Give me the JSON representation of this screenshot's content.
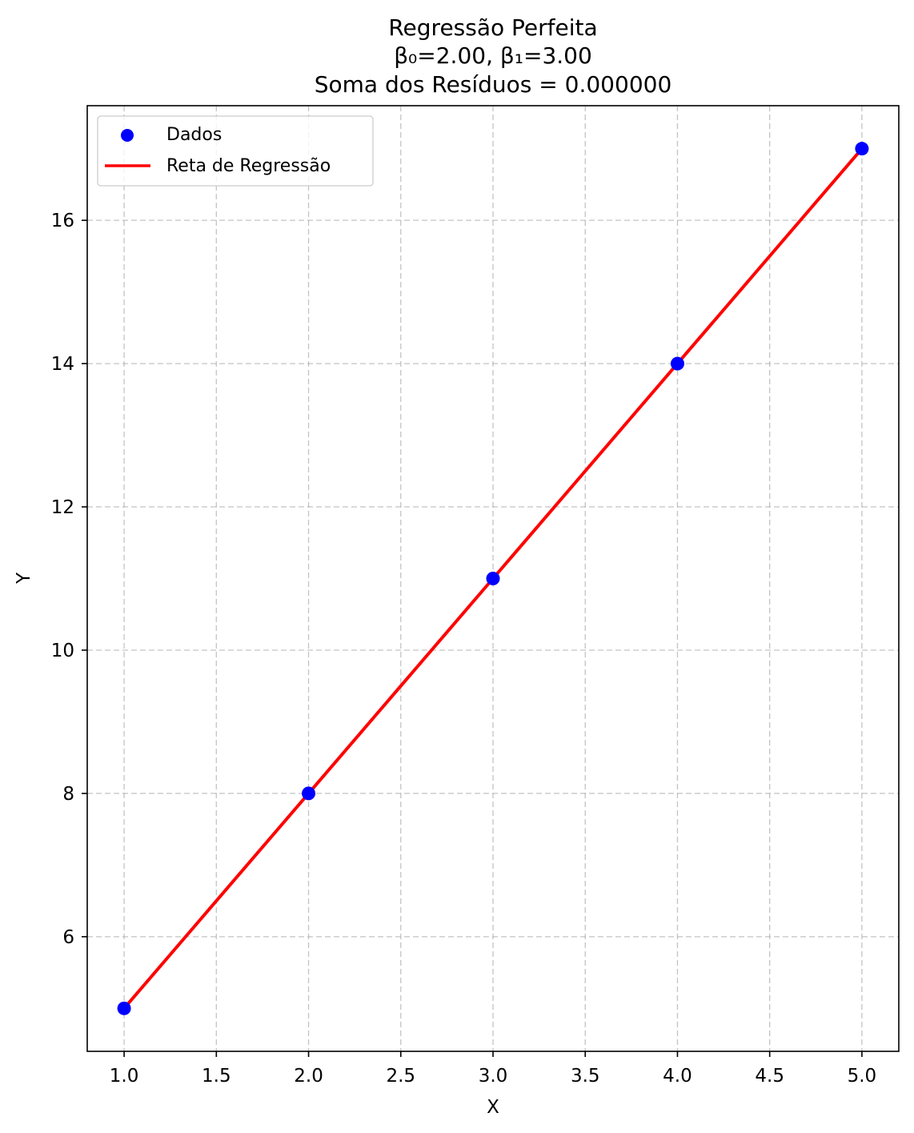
{
  "chart_data": {
    "type": "scatter",
    "title": [
      "Regressão Perfeita",
      "β₀=2.00, β₁=3.00",
      "Soma dos Resíduos = 0.000000"
    ],
    "xlabel": "X",
    "ylabel": "Y",
    "xlim": [
      0.8,
      5.2
    ],
    "ylim": [
      4.4,
      17.6
    ],
    "xticks": [
      1.0,
      1.5,
      2.0,
      2.5,
      3.0,
      3.5,
      4.0,
      4.5,
      5.0
    ],
    "xtick_labels": [
      "1.0",
      "1.5",
      "2.0",
      "2.5",
      "3.0",
      "3.5",
      "4.0",
      "4.5",
      "5.0"
    ],
    "yticks": [
      6,
      8,
      10,
      12,
      14,
      16
    ],
    "ytick_labels": [
      "6",
      "8",
      "10",
      "12",
      "14",
      "16"
    ],
    "grid": true,
    "legend_position": "top-left",
    "series": [
      {
        "name": "Dados",
        "kind": "scatter",
        "color": "#0000ff",
        "x": [
          1,
          2,
          3,
          4,
          5
        ],
        "y": [
          5,
          8,
          11,
          14,
          17
        ]
      },
      {
        "name": "Reta de Regressão",
        "kind": "line",
        "color": "#ff0000",
        "x": [
          1,
          2,
          3,
          4,
          5
        ],
        "y": [
          5,
          8,
          11,
          14,
          17
        ]
      }
    ]
  }
}
